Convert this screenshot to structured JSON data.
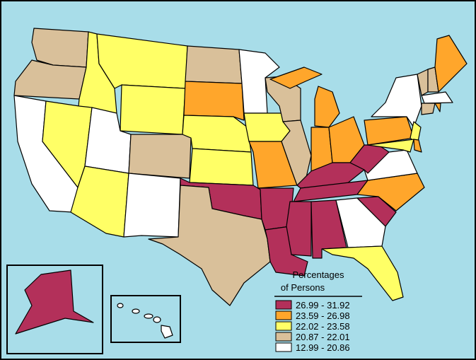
{
  "legend": {
    "title_lines": [
      "Percentages",
      "of Persons"
    ],
    "items": [
      {
        "label": "26.99 - 31.92",
        "color": "#b3305a"
      },
      {
        "label": "23.59 - 26.98",
        "color": "#ffa62b"
      },
      {
        "label": "22.02 - 23.58",
        "color": "#ffff66"
      },
      {
        "label": "20.87 - 22.01",
        "color": "#d9c09a"
      },
      {
        "label": "12.99 - 20.86",
        "color": "#ffffff"
      }
    ]
  }
}
